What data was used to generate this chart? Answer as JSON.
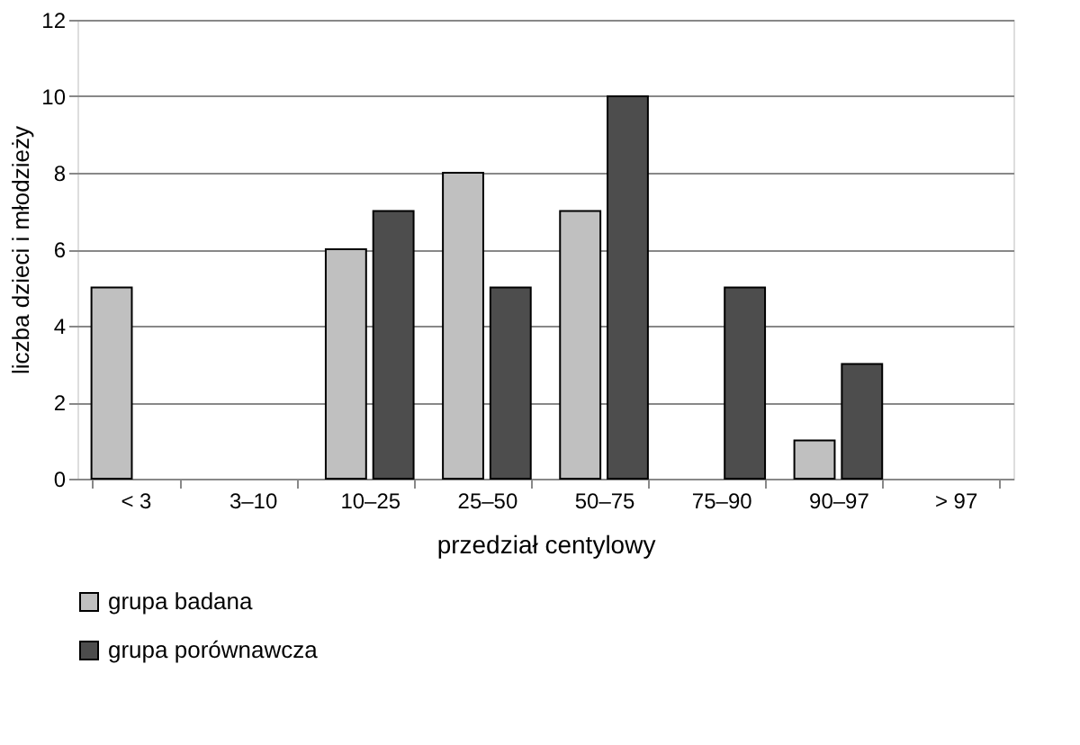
{
  "chart_data": {
    "type": "bar",
    "xlabel": "przedział centylowy",
    "ylabel": "liczba dzieci i młodzieży",
    "categories": [
      "< 3",
      "3–10",
      "10–25",
      "25–50",
      "50–75",
      "75–90",
      "90–97",
      "> 97"
    ],
    "series": [
      {
        "name": "grupa badana",
        "color": "#c0c0c0",
        "values": [
          5,
          null,
          6,
          8,
          7,
          null,
          1,
          null
        ]
      },
      {
        "name": "grupa porównawcza",
        "color": "#4d4d4d",
        "values": [
          null,
          null,
          7,
          5,
          10,
          5,
          3,
          null
        ]
      }
    ],
    "ylim": [
      0,
      12
    ],
    "yticks": [
      0,
      2,
      4,
      6,
      8,
      10,
      12
    ],
    "grid": "y",
    "legend": "bottom"
  }
}
